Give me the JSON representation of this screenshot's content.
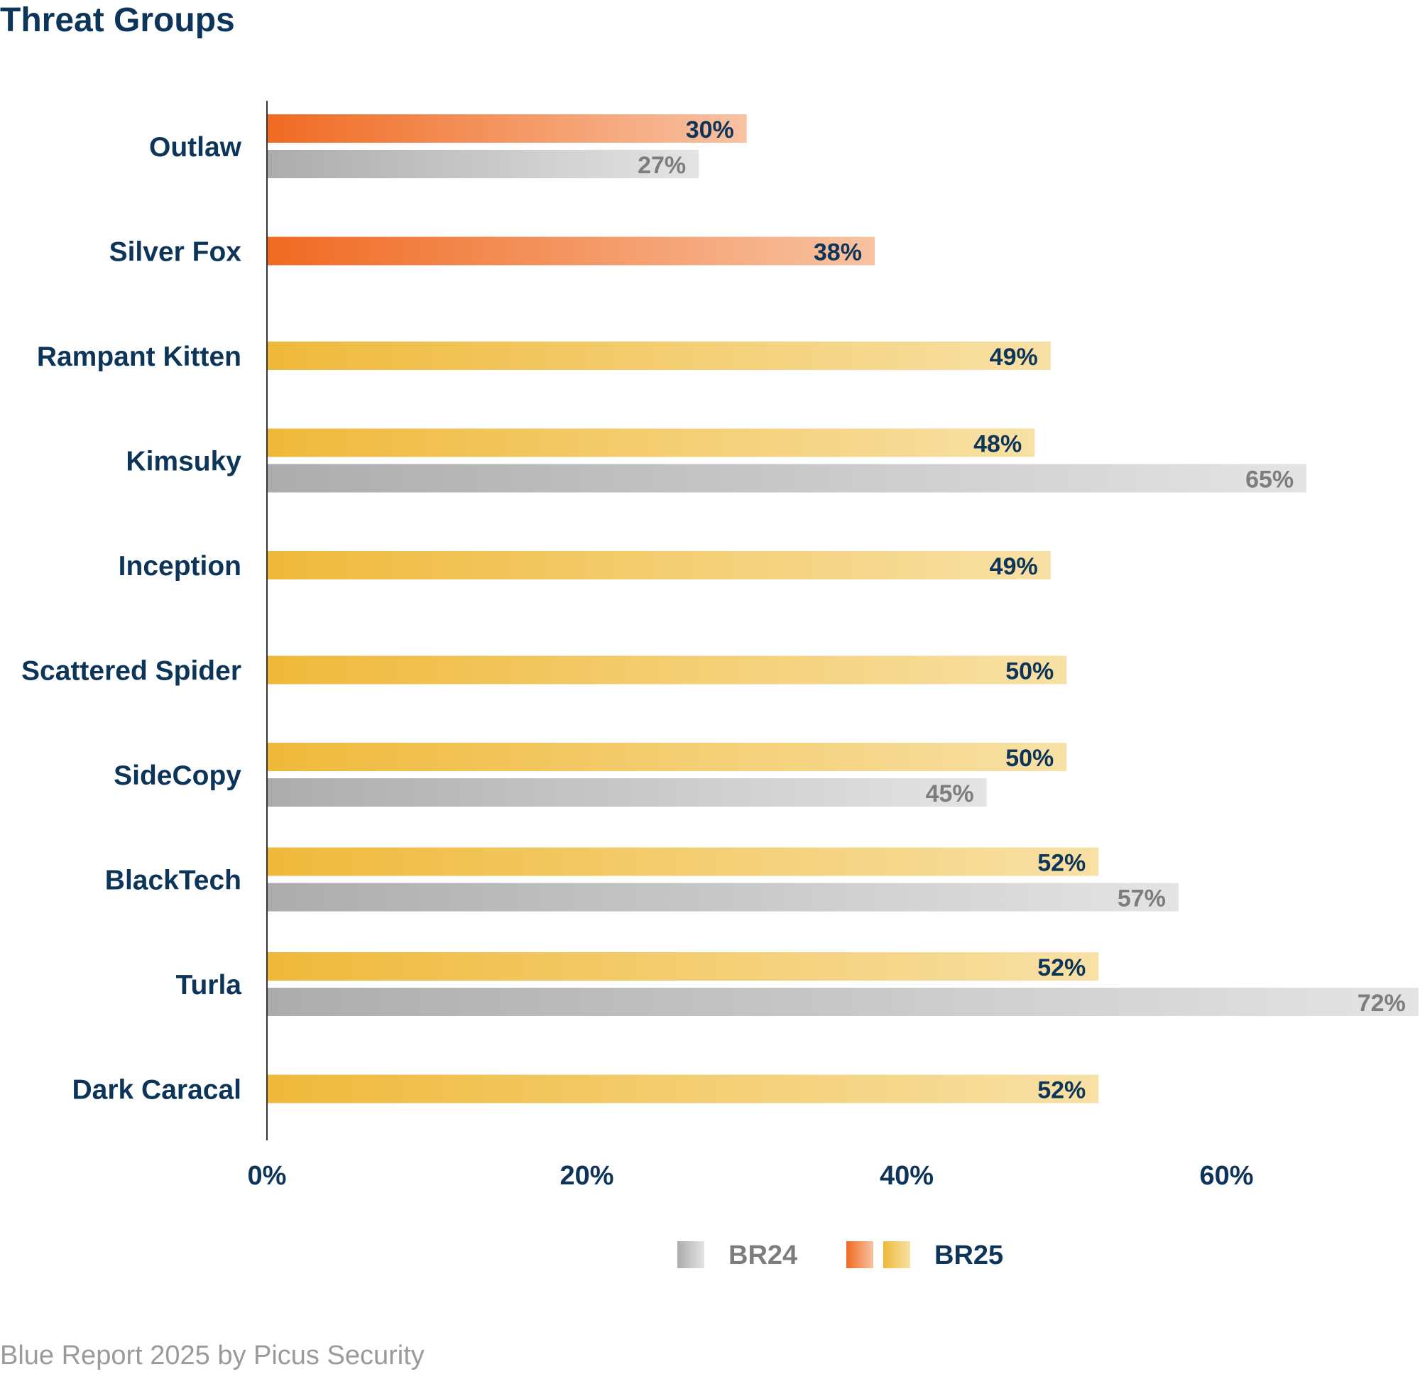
{
  "chart_data": {
    "type": "bar",
    "orientation": "horizontal",
    "title": "Threat Groups",
    "categories": [
      "Outlaw",
      "Silver Fox",
      "Rampant Kitten",
      "Kimsuky",
      "Inception",
      "Scattered Spider",
      "SideCopy",
      "BlackTech",
      "Turla",
      "Dark Caracal"
    ],
    "series": [
      {
        "name": "BR25",
        "values": [
          30,
          38,
          49,
          48,
          49,
          50,
          50,
          52,
          52,
          52
        ],
        "labels": [
          "30%",
          "38%",
          "49%",
          "48%",
          "49%",
          "50%",
          "50%",
          "52%",
          "52%",
          "52%"
        ],
        "color_variants": [
          "orange",
          "orange",
          "yellow",
          "yellow",
          "yellow",
          "yellow",
          "yellow",
          "yellow",
          "yellow",
          "yellow"
        ]
      },
      {
        "name": "BR24",
        "values": [
          27,
          null,
          null,
          65,
          null,
          null,
          45,
          57,
          72,
          null
        ],
        "labels": [
          "27%",
          null,
          null,
          "65%",
          null,
          null,
          "45%",
          "57%",
          "72%",
          null
        ]
      }
    ],
    "xlim": [
      0,
      72
    ],
    "xticks": [
      0,
      20,
      40,
      60
    ],
    "xtick_labels": [
      "0%",
      "20%",
      "40%",
      "60%"
    ],
    "xlabel": "",
    "ylabel": "",
    "grid": false,
    "legend_position": "bottom-center",
    "legend": [
      {
        "label": "BR24",
        "swatches": [
          "gray"
        ]
      },
      {
        "label": "BR25",
        "swatches": [
          "orange",
          "yellow"
        ]
      }
    ]
  },
  "colors": {
    "text_dark": "#0d3559",
    "text_gray": "#7d7d7d",
    "footer_gray": "#9a9a9a",
    "axis": "#333333",
    "orange_start": "#f06a22",
    "orange_end": "#f8c2a2",
    "yellow_start": "#efb93a",
    "yellow_end": "#f8e1a6",
    "gray_start": "#acacac",
    "gray_end": "#e4e4e4"
  },
  "footer": "Blue Report 2025 by Picus Security"
}
